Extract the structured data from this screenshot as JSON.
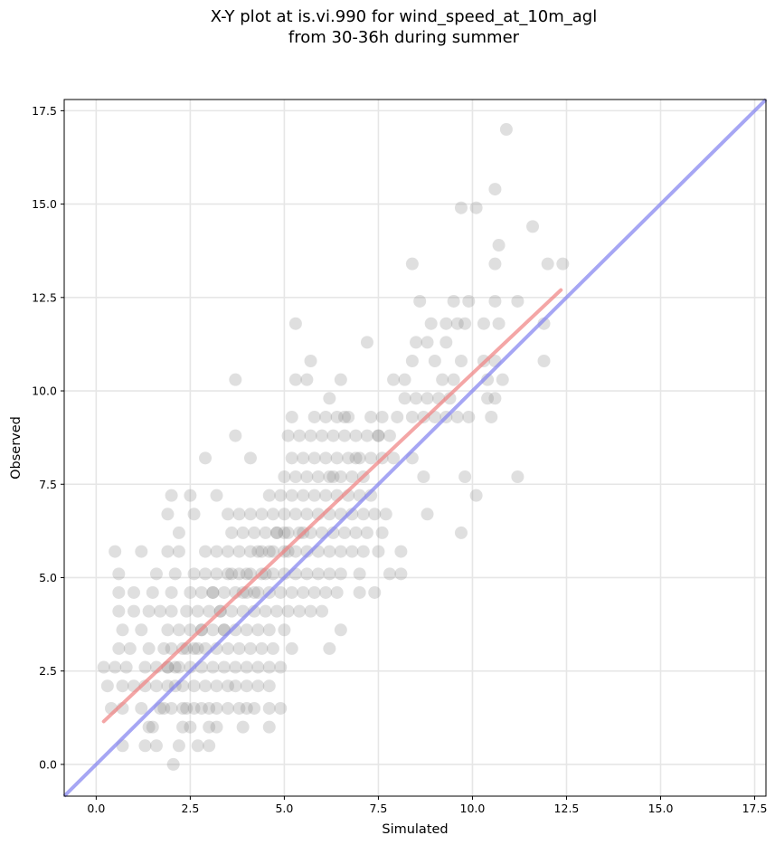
{
  "chart_data": {
    "type": "scatter",
    "title_line1": "X-Y plot at is.vi.990 for wind_speed_at_10m_agl",
    "title_line2": "from 30-36h during summer",
    "xlabel": "Simulated",
    "ylabel": "Observed",
    "xlim": [
      -0.85,
      17.8
    ],
    "ylim": [
      -0.85,
      17.8
    ],
    "xticks": [
      0.0,
      2.5,
      5.0,
      7.5,
      10.0,
      12.5,
      15.0,
      17.5
    ],
    "yticks": [
      0.0,
      2.5,
      5.0,
      7.5,
      10.0,
      12.5,
      15.0,
      17.5
    ],
    "xtick_labels": [
      "0.0",
      "2.5",
      "5.0",
      "7.5",
      "10.0",
      "12.5",
      "15.0",
      "17.5"
    ],
    "ytick_labels": [
      "0.0",
      "2.5",
      "5.0",
      "7.5",
      "10.0",
      "12.5",
      "15.0",
      "17.5"
    ],
    "grid": true,
    "point_color": "#808080",
    "fit_line": {
      "x": [
        0.2,
        12.35
      ],
      "y": [
        1.15,
        12.7
      ],
      "color": "#f08080"
    },
    "identity_line": {
      "x": [
        -0.85,
        17.8
      ],
      "y": [
        -0.85,
        17.8
      ],
      "color": "#8080f0"
    },
    "points": [
      [
        2.05,
        0.0
      ],
      [
        1.3,
        0.5
      ],
      [
        1.6,
        0.5
      ],
      [
        2.2,
        0.5
      ],
      [
        2.7,
        0.5
      ],
      [
        3.0,
        0.5
      ],
      [
        0.7,
        0.5
      ],
      [
        1.4,
        1.0
      ],
      [
        1.5,
        1.0
      ],
      [
        2.3,
        1.0
      ],
      [
        2.5,
        1.0
      ],
      [
        3.0,
        1.0
      ],
      [
        3.2,
        1.0
      ],
      [
        3.9,
        1.0
      ],
      [
        4.6,
        1.0
      ],
      [
        0.4,
        1.5
      ],
      [
        0.7,
        1.5
      ],
      [
        1.2,
        1.5
      ],
      [
        1.7,
        1.5
      ],
      [
        1.8,
        1.5
      ],
      [
        2.0,
        1.5
      ],
      [
        2.3,
        1.5
      ],
      [
        2.4,
        1.5
      ],
      [
        2.6,
        1.5
      ],
      [
        2.8,
        1.5
      ],
      [
        3.0,
        1.5
      ],
      [
        3.2,
        1.5
      ],
      [
        3.5,
        1.5
      ],
      [
        3.8,
        1.5
      ],
      [
        4.0,
        1.5
      ],
      [
        4.2,
        1.5
      ],
      [
        4.6,
        1.5
      ],
      [
        4.9,
        1.5
      ],
      [
        0.3,
        2.1
      ],
      [
        0.7,
        2.1
      ],
      [
        1.0,
        2.1
      ],
      [
        1.3,
        2.1
      ],
      [
        1.6,
        2.1
      ],
      [
        1.9,
        2.1
      ],
      [
        2.1,
        2.1
      ],
      [
        2.3,
        2.1
      ],
      [
        2.6,
        2.1
      ],
      [
        2.9,
        2.1
      ],
      [
        3.2,
        2.1
      ],
      [
        3.5,
        2.1
      ],
      [
        3.7,
        2.1
      ],
      [
        4.0,
        2.1
      ],
      [
        4.3,
        2.1
      ],
      [
        4.6,
        2.1
      ],
      [
        0.2,
        2.6
      ],
      [
        0.5,
        2.6
      ],
      [
        0.8,
        2.6
      ],
      [
        1.3,
        2.6
      ],
      [
        1.6,
        2.6
      ],
      [
        1.9,
        2.6
      ],
      [
        2.2,
        2.6
      ],
      [
        2.5,
        2.6
      ],
      [
        2.8,
        2.6
      ],
      [
        3.1,
        2.6
      ],
      [
        3.4,
        2.6
      ],
      [
        3.7,
        2.6
      ],
      [
        4.0,
        2.6
      ],
      [
        4.3,
        2.6
      ],
      [
        4.6,
        2.6
      ],
      [
        4.9,
        2.6
      ],
      [
        0.6,
        3.1
      ],
      [
        0.9,
        3.1
      ],
      [
        1.4,
        3.1
      ],
      [
        1.8,
        3.1
      ],
      [
        2.0,
        3.1
      ],
      [
        2.3,
        3.1
      ],
      [
        2.6,
        3.1
      ],
      [
        2.9,
        3.1
      ],
      [
        3.2,
        3.1
      ],
      [
        3.5,
        3.1
      ],
      [
        3.8,
        3.1
      ],
      [
        4.1,
        3.1
      ],
      [
        4.4,
        3.1
      ],
      [
        4.7,
        3.1
      ],
      [
        5.2,
        3.1
      ],
      [
        6.2,
        3.1
      ],
      [
        0.7,
        3.6
      ],
      [
        1.2,
        3.6
      ],
      [
        1.9,
        3.6
      ],
      [
        2.2,
        3.6
      ],
      [
        2.5,
        3.6
      ],
      [
        2.8,
        3.6
      ],
      [
        3.1,
        3.6
      ],
      [
        3.4,
        3.6
      ],
      [
        3.7,
        3.6
      ],
      [
        4.0,
        3.6
      ],
      [
        4.3,
        3.6
      ],
      [
        4.6,
        3.6
      ],
      [
        5.0,
        3.6
      ],
      [
        6.5,
        3.6
      ],
      [
        0.6,
        4.1
      ],
      [
        1.0,
        4.1
      ],
      [
        1.4,
        4.1
      ],
      [
        1.7,
        4.1
      ],
      [
        2.0,
        4.1
      ],
      [
        2.4,
        4.1
      ],
      [
        2.7,
        4.1
      ],
      [
        3.0,
        4.1
      ],
      [
        3.3,
        4.1
      ],
      [
        3.6,
        4.1
      ],
      [
        3.9,
        4.1
      ],
      [
        4.2,
        4.1
      ],
      [
        4.5,
        4.1
      ],
      [
        4.8,
        4.1
      ],
      [
        5.1,
        4.1
      ],
      [
        5.4,
        4.1
      ],
      [
        5.7,
        4.1
      ],
      [
        6.0,
        4.1
      ],
      [
        0.6,
        4.6
      ],
      [
        1.0,
        4.6
      ],
      [
        1.5,
        4.6
      ],
      [
        2.0,
        4.6
      ],
      [
        2.5,
        4.6
      ],
      [
        2.8,
        4.6
      ],
      [
        3.1,
        4.6
      ],
      [
        3.4,
        4.6
      ],
      [
        3.7,
        4.6
      ],
      [
        4.0,
        4.6
      ],
      [
        4.3,
        4.6
      ],
      [
        4.6,
        4.6
      ],
      [
        4.9,
        4.6
      ],
      [
        5.2,
        4.6
      ],
      [
        5.5,
        4.6
      ],
      [
        5.8,
        4.6
      ],
      [
        6.1,
        4.6
      ],
      [
        6.4,
        4.6
      ],
      [
        7.0,
        4.6
      ],
      [
        7.4,
        4.6
      ],
      [
        0.6,
        5.1
      ],
      [
        1.6,
        5.1
      ],
      [
        2.1,
        5.1
      ],
      [
        2.6,
        5.1
      ],
      [
        2.9,
        5.1
      ],
      [
        3.2,
        5.1
      ],
      [
        3.5,
        5.1
      ],
      [
        3.8,
        5.1
      ],
      [
        4.1,
        5.1
      ],
      [
        4.4,
        5.1
      ],
      [
        4.7,
        5.1
      ],
      [
        5.0,
        5.1
      ],
      [
        5.3,
        5.1
      ],
      [
        5.6,
        5.1
      ],
      [
        5.9,
        5.1
      ],
      [
        6.2,
        5.1
      ],
      [
        6.5,
        5.1
      ],
      [
        7.0,
        5.1
      ],
      [
        7.8,
        5.1
      ],
      [
        8.1,
        5.1
      ],
      [
        1.9,
        5.7
      ],
      [
        2.2,
        5.7
      ],
      [
        2.9,
        5.7
      ],
      [
        3.2,
        5.7
      ],
      [
        3.5,
        5.7
      ],
      [
        3.8,
        5.7
      ],
      [
        4.1,
        5.7
      ],
      [
        4.4,
        5.7
      ],
      [
        4.7,
        5.7
      ],
      [
        5.0,
        5.7
      ],
      [
        5.3,
        5.7
      ],
      [
        5.6,
        5.7
      ],
      [
        5.9,
        5.7
      ],
      [
        6.2,
        5.7
      ],
      [
        6.5,
        5.7
      ],
      [
        6.8,
        5.7
      ],
      [
        7.1,
        5.7
      ],
      [
        7.5,
        5.7
      ],
      [
        8.1,
        5.7
      ],
      [
        0.5,
        5.7
      ],
      [
        1.2,
        5.7
      ],
      [
        2.2,
        6.2
      ],
      [
        3.6,
        6.2
      ],
      [
        3.9,
        6.2
      ],
      [
        4.2,
        6.2
      ],
      [
        4.5,
        6.2
      ],
      [
        4.8,
        6.2
      ],
      [
        5.1,
        6.2
      ],
      [
        5.4,
        6.2
      ],
      [
        5.7,
        6.2
      ],
      [
        6.0,
        6.2
      ],
      [
        6.3,
        6.2
      ],
      [
        6.6,
        6.2
      ],
      [
        6.9,
        6.2
      ],
      [
        7.2,
        6.2
      ],
      [
        7.6,
        6.2
      ],
      [
        9.7,
        6.2
      ],
      [
        1.9,
        6.7
      ],
      [
        2.6,
        6.7
      ],
      [
        3.5,
        6.7
      ],
      [
        3.8,
        6.7
      ],
      [
        4.1,
        6.7
      ],
      [
        4.4,
        6.7
      ],
      [
        4.7,
        6.7
      ],
      [
        5.0,
        6.7
      ],
      [
        5.3,
        6.7
      ],
      [
        5.6,
        6.7
      ],
      [
        5.9,
        6.7
      ],
      [
        6.2,
        6.7
      ],
      [
        6.5,
        6.7
      ],
      [
        6.8,
        6.7
      ],
      [
        7.1,
        6.7
      ],
      [
        7.4,
        6.7
      ],
      [
        7.7,
        6.7
      ],
      [
        8.8,
        6.7
      ],
      [
        2.0,
        7.2
      ],
      [
        2.5,
        7.2
      ],
      [
        3.2,
        7.2
      ],
      [
        4.6,
        7.2
      ],
      [
        4.9,
        7.2
      ],
      [
        5.2,
        7.2
      ],
      [
        5.5,
        7.2
      ],
      [
        5.8,
        7.2
      ],
      [
        6.1,
        7.2
      ],
      [
        6.4,
        7.2
      ],
      [
        6.7,
        7.2
      ],
      [
        7.0,
        7.2
      ],
      [
        7.3,
        7.2
      ],
      [
        10.1,
        7.2
      ],
      [
        5.0,
        7.7
      ],
      [
        5.3,
        7.7
      ],
      [
        5.6,
        7.7
      ],
      [
        5.9,
        7.7
      ],
      [
        6.2,
        7.7
      ],
      [
        6.5,
        7.7
      ],
      [
        6.8,
        7.7
      ],
      [
        7.1,
        7.7
      ],
      [
        8.7,
        7.7
      ],
      [
        9.8,
        7.7
      ],
      [
        11.2,
        7.7
      ],
      [
        2.9,
        8.2
      ],
      [
        4.1,
        8.2
      ],
      [
        5.2,
        8.2
      ],
      [
        5.5,
        8.2
      ],
      [
        5.8,
        8.2
      ],
      [
        6.1,
        8.2
      ],
      [
        6.4,
        8.2
      ],
      [
        6.7,
        8.2
      ],
      [
        7.0,
        8.2
      ],
      [
        7.3,
        8.2
      ],
      [
        7.6,
        8.2
      ],
      [
        7.9,
        8.2
      ],
      [
        8.4,
        8.2
      ],
      [
        3.7,
        8.8
      ],
      [
        5.1,
        8.8
      ],
      [
        5.4,
        8.8
      ],
      [
        5.7,
        8.8
      ],
      [
        6.0,
        8.8
      ],
      [
        6.3,
        8.8
      ],
      [
        6.6,
        8.8
      ],
      [
        6.9,
        8.8
      ],
      [
        7.2,
        8.8
      ],
      [
        7.5,
        8.8
      ],
      [
        7.8,
        8.8
      ],
      [
        5.2,
        9.3
      ],
      [
        5.8,
        9.3
      ],
      [
        6.1,
        9.3
      ],
      [
        6.4,
        9.3
      ],
      [
        6.7,
        9.3
      ],
      [
        7.3,
        9.3
      ],
      [
        7.6,
        9.3
      ],
      [
        8.0,
        9.3
      ],
      [
        8.4,
        9.3
      ],
      [
        8.7,
        9.3
      ],
      [
        9.0,
        9.3
      ],
      [
        9.3,
        9.3
      ],
      [
        9.6,
        9.3
      ],
      [
        9.9,
        9.3
      ],
      [
        10.5,
        9.3
      ],
      [
        8.2,
        9.8
      ],
      [
        8.5,
        9.8
      ],
      [
        8.8,
        9.8
      ],
      [
        9.1,
        9.8
      ],
      [
        9.4,
        9.8
      ],
      [
        6.2,
        9.8
      ],
      [
        10.4,
        9.8
      ],
      [
        10.6,
        9.8
      ],
      [
        3.7,
        10.3
      ],
      [
        5.3,
        10.3
      ],
      [
        5.6,
        10.3
      ],
      [
        6.5,
        10.3
      ],
      [
        7.9,
        10.3
      ],
      [
        8.2,
        10.3
      ],
      [
        9.2,
        10.3
      ],
      [
        9.5,
        10.3
      ],
      [
        10.4,
        10.3
      ],
      [
        10.8,
        10.3
      ],
      [
        5.7,
        10.8
      ],
      [
        8.4,
        10.8
      ],
      [
        9.0,
        10.8
      ],
      [
        9.7,
        10.8
      ],
      [
        10.3,
        10.8
      ],
      [
        10.6,
        10.8
      ],
      [
        11.9,
        10.8
      ],
      [
        7.2,
        11.3
      ],
      [
        8.5,
        11.3
      ],
      [
        8.8,
        11.3
      ],
      [
        9.3,
        11.3
      ],
      [
        5.3,
        11.8
      ],
      [
        8.9,
        11.8
      ],
      [
        9.3,
        11.8
      ],
      [
        9.6,
        11.8
      ],
      [
        9.8,
        11.8
      ],
      [
        10.3,
        11.8
      ],
      [
        10.7,
        11.8
      ],
      [
        11.9,
        11.8
      ],
      [
        8.6,
        12.4
      ],
      [
        9.5,
        12.4
      ],
      [
        9.9,
        12.4
      ],
      [
        10.6,
        12.4
      ],
      [
        11.2,
        12.4
      ],
      [
        8.4,
        13.4
      ],
      [
        10.6,
        13.4
      ],
      [
        12.0,
        13.4
      ],
      [
        12.4,
        13.4
      ],
      [
        10.7,
        13.9
      ],
      [
        11.6,
        14.4
      ],
      [
        9.7,
        14.9
      ],
      [
        10.1,
        14.9
      ],
      [
        10.6,
        15.4
      ],
      [
        10.9,
        17.0
      ],
      [
        3.1,
        4.6
      ],
      [
        3.6,
        5.1
      ],
      [
        4.3,
        5.7
      ],
      [
        4.8,
        6.2
      ],
      [
        5.1,
        5.7
      ],
      [
        4.5,
        5.1
      ],
      [
        3.9,
        4.6
      ],
      [
        2.8,
        3.6
      ],
      [
        2.4,
        3.1
      ],
      [
        1.9,
        2.6
      ],
      [
        3.3,
        4.1
      ],
      [
        4.0,
        5.1
      ],
      [
        4.6,
        5.7
      ],
      [
        5.5,
        6.2
      ],
      [
        6.3,
        7.7
      ],
      [
        6.9,
        8.2
      ],
      [
        7.5,
        8.8
      ],
      [
        6.6,
        9.3
      ],
      [
        5.0,
        6.2
      ],
      [
        4.2,
        4.6
      ],
      [
        3.4,
        3.6
      ],
      [
        2.7,
        3.1
      ],
      [
        2.1,
        2.6
      ]
    ]
  }
}
